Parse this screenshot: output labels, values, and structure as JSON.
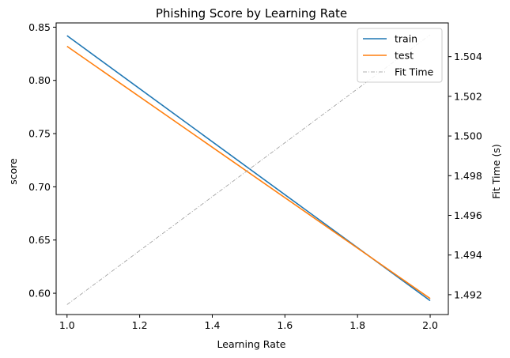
{
  "chart_data": {
    "type": "line",
    "title": "Phishing Score by Learning Rate",
    "xlabel": "Learning Rate",
    "ylabel": "score",
    "y2label": "Fit Time (s)",
    "xlim": [
      0.97,
      2.05
    ],
    "ylim": [
      0.58,
      0.854
    ],
    "y2lim": [
      1.491,
      1.5057
    ],
    "x_ticks": [
      "1.0",
      "1.2",
      "1.4",
      "1.6",
      "1.8",
      "2.0"
    ],
    "y_ticks": [
      "0.60",
      "0.65",
      "0.70",
      "0.75",
      "0.80",
      "0.85"
    ],
    "y2_ticks": [
      "1.492",
      "1.494",
      "1.496",
      "1.498",
      "1.500",
      "1.502",
      "1.504"
    ],
    "x": [
      1.0,
      2.0
    ],
    "series": [
      {
        "name": "train",
        "axis": "left",
        "color": "#1f77b4",
        "style": "solid",
        "values": [
          0.842,
          0.593
        ]
      },
      {
        "name": "test",
        "axis": "left",
        "color": "#ff7f0e",
        "style": "solid",
        "values": [
          0.832,
          0.595
        ]
      },
      {
        "name": "Fit Time",
        "axis": "right",
        "color": "#999999",
        "style": "dashdot",
        "values": [
          1.4915,
          1.5051
        ]
      }
    ],
    "legend": {
      "position": "top-right"
    },
    "grid": false
  }
}
